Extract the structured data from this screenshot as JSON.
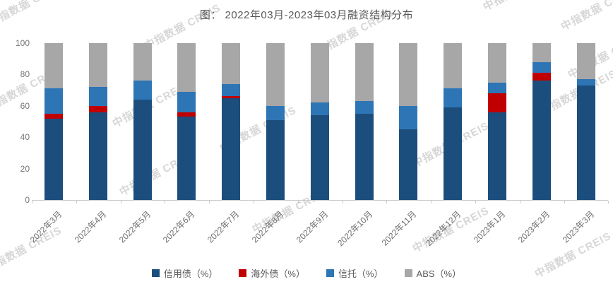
{
  "title": "图： 2022年03月-2023年03月融资结构分布",
  "watermark_text": "中指数据 CREIS",
  "chart_data": {
    "type": "bar",
    "stacked": true,
    "title": "图： 2022年03月-2023年03月融资结构分布",
    "categories": [
      "2022年3月",
      "2022年4月",
      "2022年5月",
      "2022年6月",
      "2022年7月",
      "2022年8月",
      "2022年9月",
      "2022年10月",
      "2022年11月",
      "2022年12月",
      "2023年1月",
      "2023年2月",
      "2023年3月"
    ],
    "series": [
      {
        "name": "信用债（%）",
        "color": "#1c4e7d",
        "values": [
          52,
          56,
          64,
          53,
          65,
          51,
          54,
          55,
          45,
          59,
          56,
          76,
          73
        ]
      },
      {
        "name": "海外债（%）",
        "color": "#c00000",
        "values": [
          3,
          4,
          0,
          3,
          1,
          0,
          0,
          0,
          0,
          0,
          12,
          5,
          0
        ]
      },
      {
        "name": "信托（%）",
        "color": "#2e75b5",
        "values": [
          16,
          12,
          12,
          13,
          8,
          9,
          8,
          8,
          15,
          12,
          7,
          7,
          4
        ]
      },
      {
        "name": "ABS（%）",
        "color": "#a7a7a7",
        "values": [
          29,
          28,
          24,
          31,
          26,
          40,
          38,
          37,
          40,
          29,
          25,
          12,
          23
        ]
      }
    ],
    "ylim": [
      0,
      100
    ],
    "y_ticks": [
      0,
      20,
      40,
      60,
      80,
      100
    ],
    "grid": false,
    "legend_position": "bottom",
    "colors": {
      "title_text": "#595959",
      "axis_text": "#6e6e6e",
      "axis_line": "#c9c9c9",
      "watermark": "#d7d7d7"
    }
  }
}
